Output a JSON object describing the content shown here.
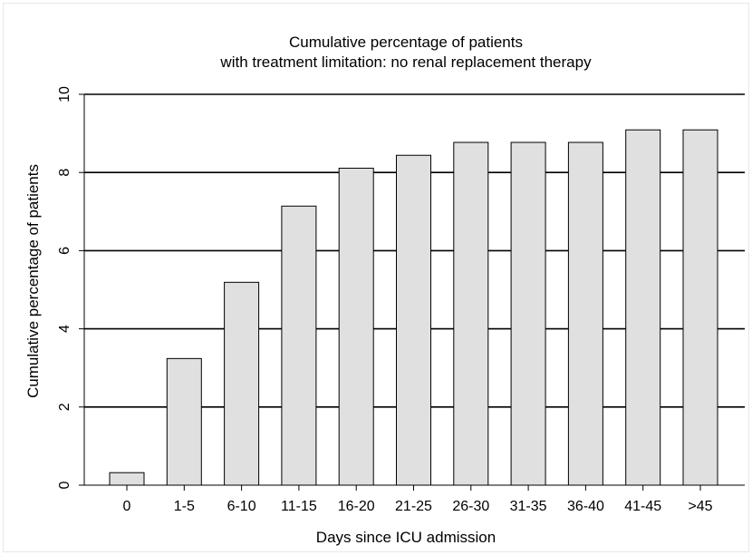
{
  "chart_data": {
    "type": "bar",
    "title": "Cumulative percentage of patients",
    "subtitle": "with treatment limitation: no renal replacement therapy",
    "xlabel": "Days since ICU admission",
    "ylabel": "Cumulative percentage of patients",
    "categories": [
      "0",
      "1-5",
      "6-10",
      "11-15",
      "16-20",
      "21-25",
      "26-30",
      "31-35",
      "36-40",
      "41-45",
      ">45"
    ],
    "values": [
      0.32,
      3.24,
      5.19,
      7.14,
      8.11,
      8.44,
      8.77,
      8.77,
      8.77,
      9.09,
      9.09
    ],
    "ylim": [
      0,
      10
    ],
    "yticks": [
      "0",
      "2",
      "4",
      "6",
      "8",
      "10"
    ],
    "grid": true,
    "bar_color": "#e0e0e0"
  }
}
